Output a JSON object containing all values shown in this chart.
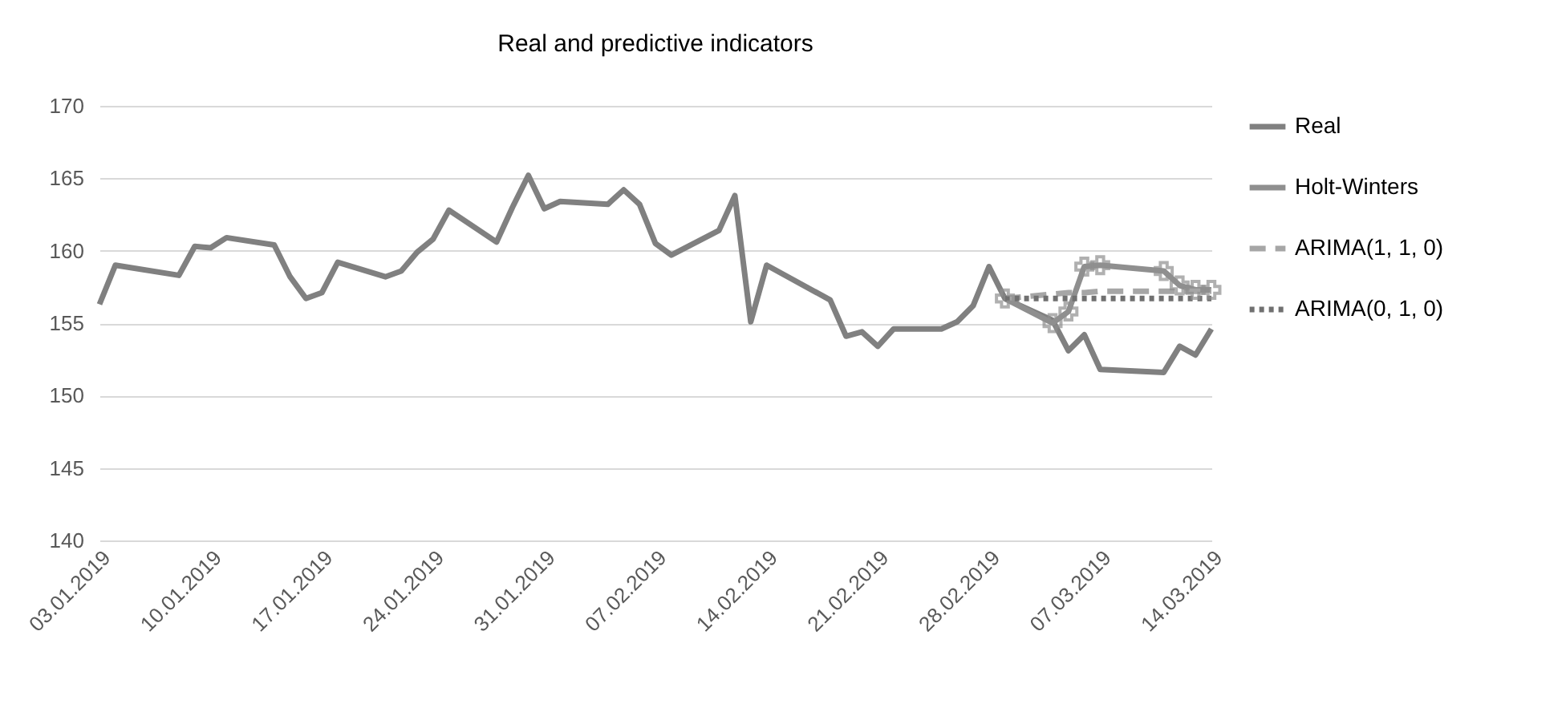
{
  "chart_data": {
    "type": "line",
    "title": "Real and predictive indicators",
    "xlim": [
      "2019-01-03",
      "2019-03-14"
    ],
    "xticks": [
      {
        "value": "2019-01-03",
        "label": "03.01.2019"
      },
      {
        "value": "2019-01-10",
        "label": "10.01.2019"
      },
      {
        "value": "2019-01-17",
        "label": "17.01.2019"
      },
      {
        "value": "2019-01-24",
        "label": "24.01.2019"
      },
      {
        "value": "2019-01-31",
        "label": "31.01.2019"
      },
      {
        "value": "2019-02-07",
        "label": "07.02.2019"
      },
      {
        "value": "2019-02-14",
        "label": "14.02.2019"
      },
      {
        "value": "2019-02-21",
        "label": "21.02.2019"
      },
      {
        "value": "2019-02-28",
        "label": "28.02.2019"
      },
      {
        "value": "2019-03-07",
        "label": "07.03.2019"
      },
      {
        "value": "2019-03-14",
        "label": "14.03.2019"
      }
    ],
    "ylim": [
      140,
      170
    ],
    "yticks": [
      140,
      145,
      150,
      155,
      160,
      165,
      170
    ],
    "grid": "y",
    "legend": "right",
    "series": [
      {
        "name": "Real",
        "color": "#808080",
        "line_style": "solid",
        "x": [
          "2019-01-03",
          "2019-01-04",
          "2019-01-08",
          "2019-01-09",
          "2019-01-10",
          "2019-01-11",
          "2019-01-14",
          "2019-01-15",
          "2019-01-16",
          "2019-01-17",
          "2019-01-18",
          "2019-01-21",
          "2019-01-22",
          "2019-01-23",
          "2019-01-24",
          "2019-01-25",
          "2019-01-28",
          "2019-01-29",
          "2019-01-30",
          "2019-01-31",
          "2019-02-01",
          "2019-02-04",
          "2019-02-05",
          "2019-02-06",
          "2019-02-07",
          "2019-02-08",
          "2019-02-11",
          "2019-02-12",
          "2019-02-13",
          "2019-02-14",
          "2019-02-18",
          "2019-02-19",
          "2019-02-20",
          "2019-02-21",
          "2019-02-22",
          "2019-02-25",
          "2019-02-26",
          "2019-02-27",
          "2019-02-28",
          "2019-03-01",
          "2019-03-04",
          "2019-03-05",
          "2019-03-06",
          "2019-03-07",
          "2019-03-11",
          "2019-03-12",
          "2019-03-13",
          "2019-03-14"
        ],
        "values": [
          156.3,
          159.0,
          158.3,
          160.3,
          160.2,
          160.9,
          160.4,
          158.2,
          156.7,
          157.1,
          159.2,
          158.2,
          158.6,
          159.9,
          160.8,
          162.8,
          160.6,
          163.0,
          165.2,
          162.9,
          163.4,
          163.2,
          164.2,
          163.2,
          160.5,
          159.7,
          161.4,
          163.8,
          155.1,
          159.0,
          156.6,
          154.1,
          154.4,
          153.4,
          154.6,
          154.6,
          155.1,
          156.2,
          158.9,
          156.7,
          155.2,
          153.1,
          154.2,
          151.8,
          151.6,
          153.4,
          152.8,
          154.6
        ]
      },
      {
        "name": "Holt-Winters",
        "color": "#8f8f8f",
        "line_style": "solid",
        "marker": "cross",
        "x": [
          "2019-03-01",
          "2019-03-04",
          "2019-03-05",
          "2019-03-06",
          "2019-03-07",
          "2019-03-11",
          "2019-03-12",
          "2019-03-13",
          "2019-03-14"
        ],
        "values": [
          156.7,
          155.0,
          155.8,
          158.9,
          159.0,
          158.6,
          157.6,
          157.3,
          157.3
        ]
      },
      {
        "name": "ARIMA(1, 1, 0)",
        "color": "#a6a6a6",
        "line_style": "dashed",
        "x": [
          "2019-03-01",
          "2019-03-04",
          "2019-03-05",
          "2019-03-06",
          "2019-03-07",
          "2019-03-11",
          "2019-03-12",
          "2019-03-13",
          "2019-03-14"
        ],
        "values": [
          156.7,
          157.0,
          157.1,
          157.1,
          157.2,
          157.2,
          157.2,
          157.2,
          157.2
        ]
      },
      {
        "name": "ARIMA(0, 1, 0)",
        "color": "#707070",
        "line_style": "dotted",
        "x": [
          "2019-03-01",
          "2019-03-04",
          "2019-03-05",
          "2019-03-06",
          "2019-03-07",
          "2019-03-11",
          "2019-03-12",
          "2019-03-13",
          "2019-03-14"
        ],
        "values": [
          156.7,
          156.7,
          156.7,
          156.7,
          156.7,
          156.7,
          156.7,
          156.7,
          156.7
        ]
      }
    ]
  }
}
